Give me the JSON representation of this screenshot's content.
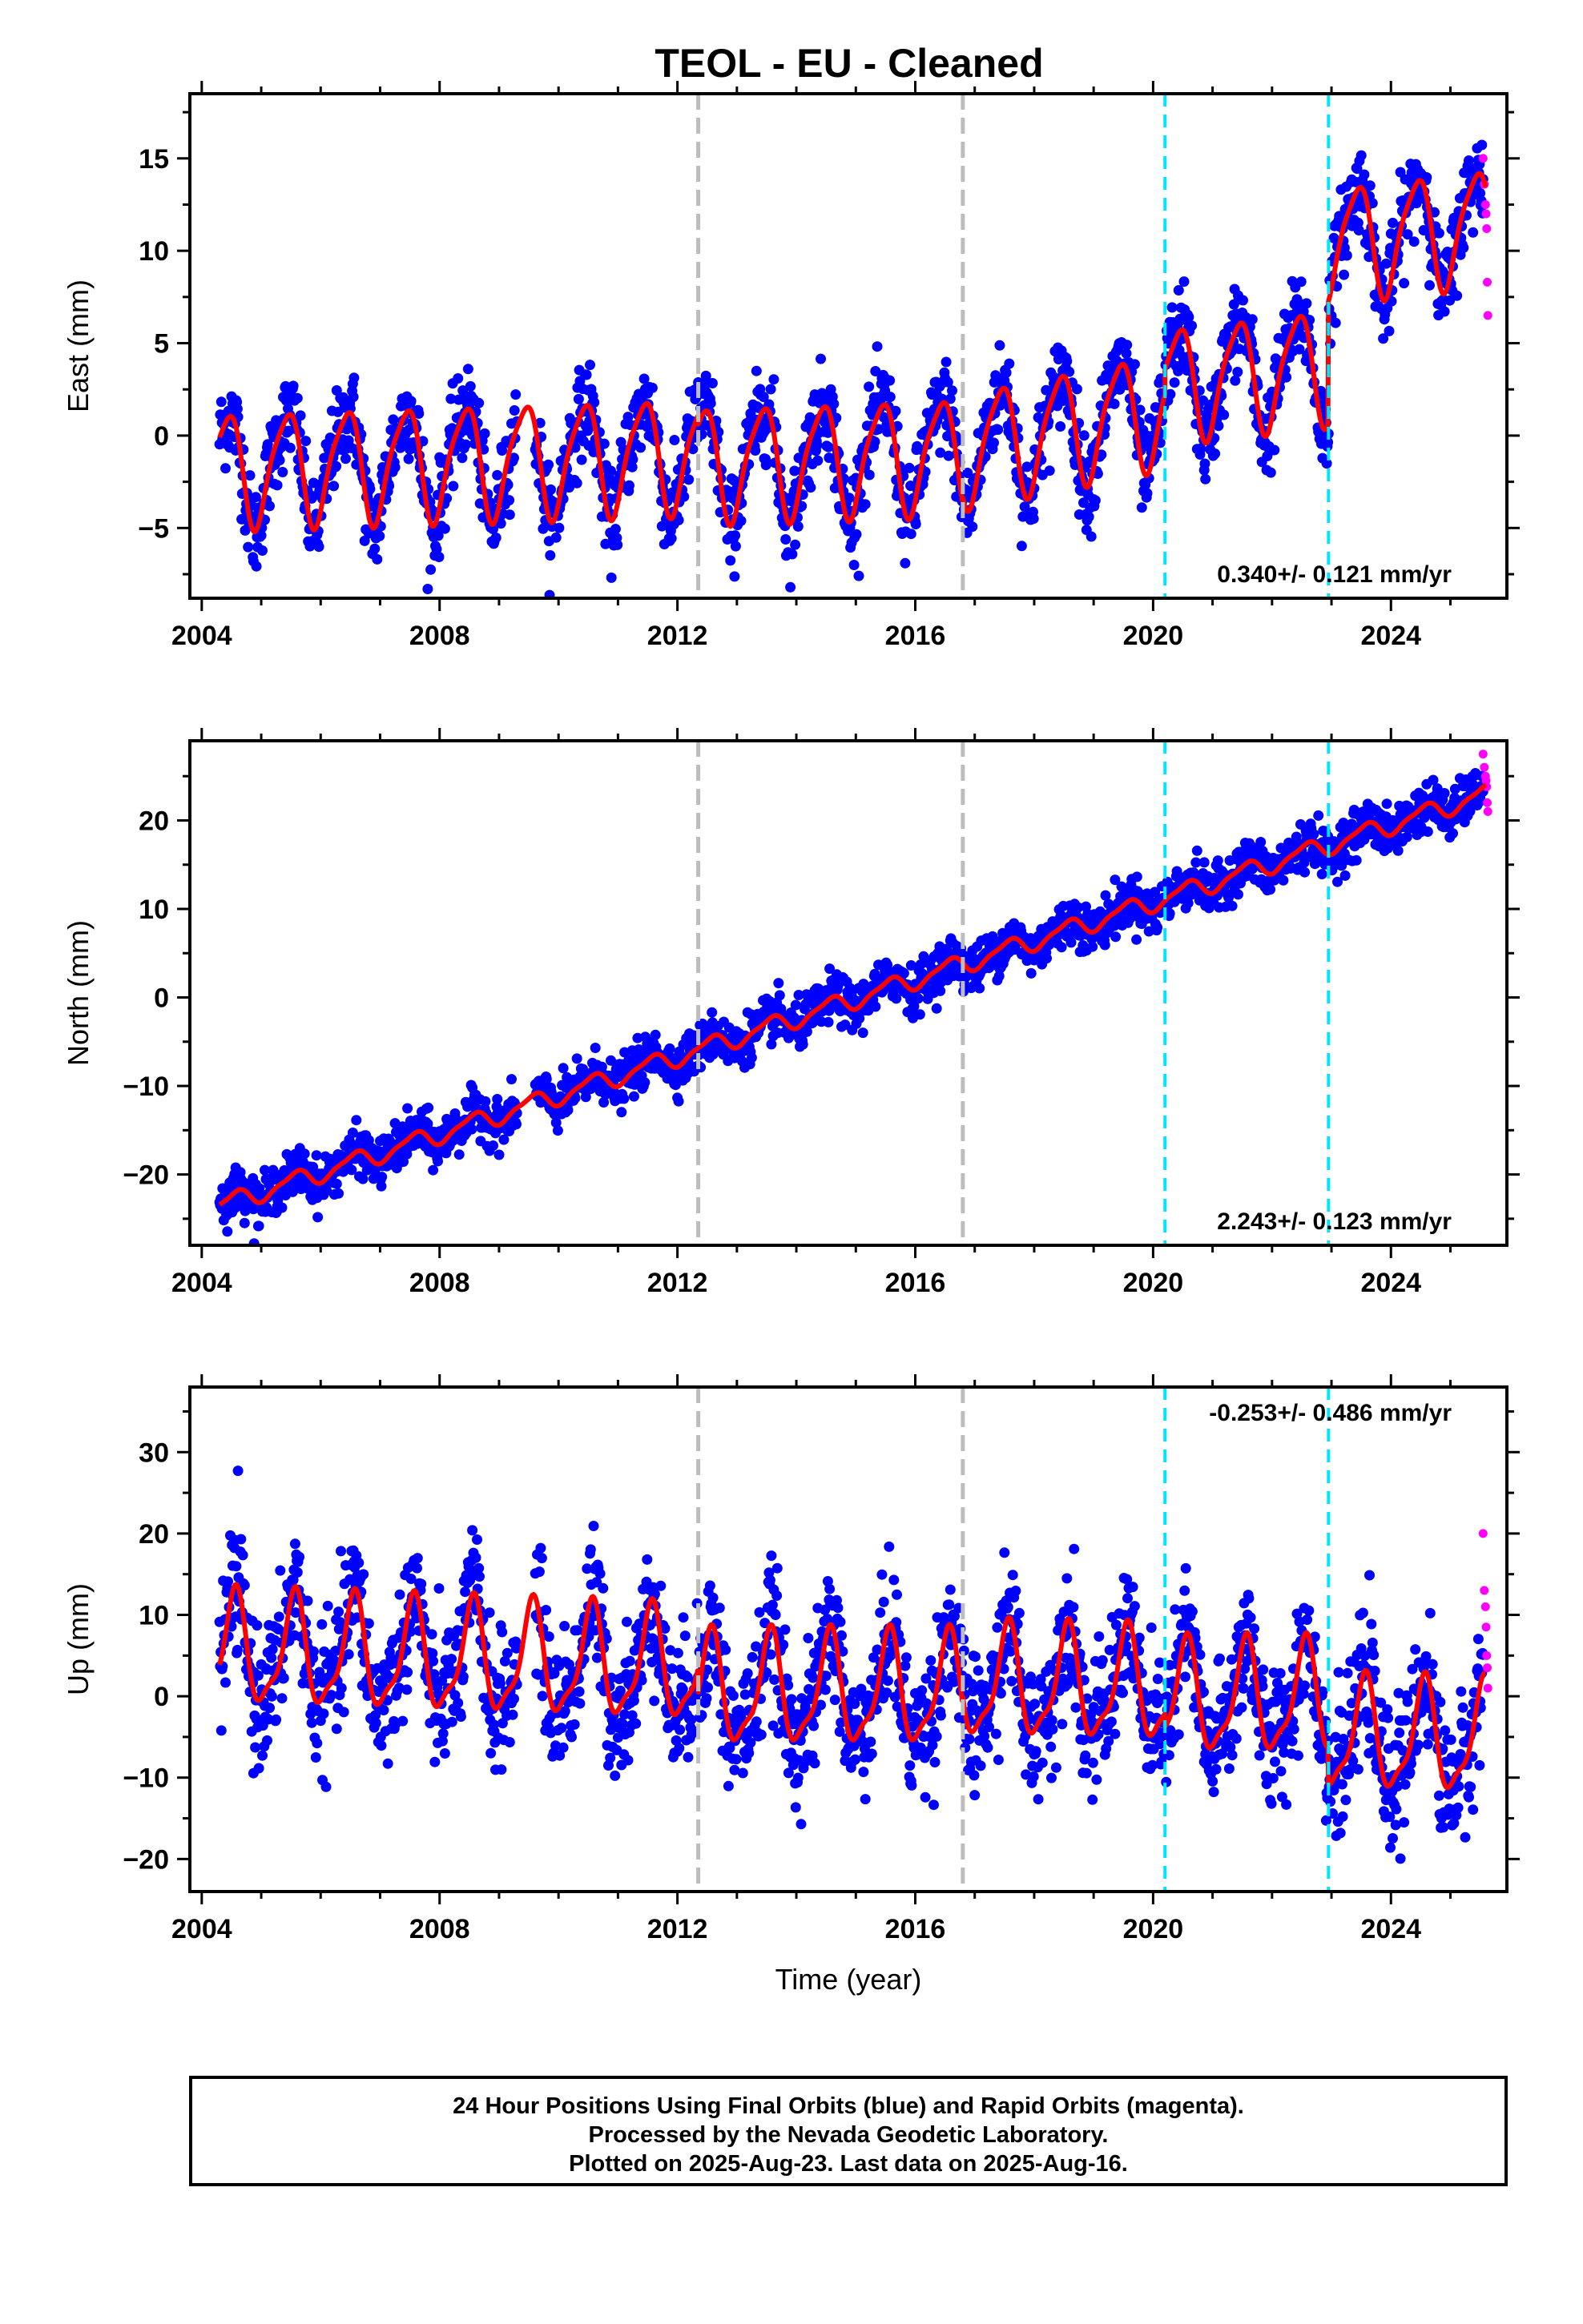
{
  "title": "TEOL  - EU - Cleaned",
  "colors": {
    "final_points": "#0000ff",
    "rapid_points": "#ff00ff",
    "model_line": "#ff0000",
    "gray_event": "#bdbdbd",
    "cyan_event": "#00e5ff"
  },
  "footer": {
    "lines": [
      "24 Hour Positions Using Final Orbits (blue) and Rapid Orbits (magenta).",
      "Processed by the Nevada Geodetic Laboratory.",
      "Plotted on 2025-Aug-23. Last data on 2025-Aug-16."
    ]
  },
  "chart_data": [
    {
      "type": "scatter",
      "panel": "east",
      "ylabel": "East (mm)",
      "xlabel": "",
      "xlim": [
        2003.8,
        2025.95
      ],
      "ylim": [
        -8.8,
        18.5
      ],
      "xticks": [
        2004,
        2008,
        2012,
        2016,
        2020,
        2024
      ],
      "yticks": [
        -5,
        0,
        5,
        10,
        15
      ],
      "rate_label": "0.340+/- 0.121 mm/yr",
      "rate_label_position": "bottom-right",
      "event_lines": [
        {
          "x": 2012.35,
          "color": "gray"
        },
        {
          "x": 2016.8,
          "color": "gray"
        },
        {
          "x": 2020.2,
          "color": "cyan"
        },
        {
          "x": 2022.95,
          "color": "cyan"
        }
      ],
      "model": {
        "trend_segments": [
          {
            "x": [
              2004.3,
              2012.35
            ],
            "y": [
              -1.8,
              -1.0
            ]
          },
          {
            "x": [
              2012.35,
              2016.8
            ],
            "y": [
              -1.5,
              -1.0
            ]
          },
          {
            "x": [
              2016.8,
              2020.2
            ],
            "y": [
              -0.7,
              1.5
            ]
          },
          {
            "x": [
              2020.2,
              2022.95
            ],
            "y": [
              2.8,
              3.8
            ]
          },
          {
            "x": [
              2022.95,
              2025.6
            ],
            "y": [
              10.4,
              11.4
            ]
          }
        ],
        "annual_amplitude": 3.0,
        "annual_peak_phase": 0.42,
        "semiannual_amplitude": 0.6,
        "semiannual_phase": 0.1
      },
      "scatter_noise": 1.2,
      "rapid_points": {
        "x": [
          2025.55,
          2025.57,
          2025.59,
          2025.6,
          2025.61,
          2025.62,
          2025.63
        ],
        "y": [
          15.0,
          13.6,
          12.5,
          12.0,
          11.2,
          8.3,
          6.5
        ]
      }
    },
    {
      "type": "scatter",
      "panel": "north",
      "ylabel": "North (mm)",
      "xlabel": "",
      "xlim": [
        2003.8,
        2025.95
      ],
      "ylim": [
        -28,
        29
      ],
      "xticks": [
        2004,
        2008,
        2012,
        2016,
        2020,
        2024
      ],
      "yticks": [
        -20,
        -10,
        0,
        10,
        20
      ],
      "rate_label": "2.243+/- 0.123 mm/yr",
      "rate_label_position": "bottom-right",
      "event_lines": [
        {
          "x": 2012.35,
          "color": "gray"
        },
        {
          "x": 2016.8,
          "color": "gray"
        },
        {
          "x": 2020.2,
          "color": "cyan"
        },
        {
          "x": 2022.95,
          "color": "cyan"
        }
      ],
      "model": {
        "trend_segments": [
          {
            "x": [
              2004.3,
              2025.6
            ],
            "y": [
              -23.5,
              23.0
            ]
          }
        ],
        "annual_amplitude": 1.0,
        "annual_peak_phase": 0.55,
        "semiannual_amplitude": 0.3,
        "semiannual_phase": 0.2
      },
      "scatter_noise": 1.3,
      "rapid_points": {
        "x": [
          2025.55,
          2025.57,
          2025.59,
          2025.6,
          2025.61,
          2025.62,
          2025.63
        ],
        "y": [
          27.5,
          26.0,
          25.0,
          24.5,
          23.8,
          22.0,
          21.0
        ]
      }
    },
    {
      "type": "scatter",
      "panel": "up",
      "ylabel": "Up (mm)",
      "xlabel": "Time (year)",
      "xlim": [
        2003.8,
        2025.95
      ],
      "ylim": [
        -24,
        38
      ],
      "xticks": [
        2004,
        2008,
        2012,
        2016,
        2020,
        2024
      ],
      "yticks": [
        -20,
        -10,
        0,
        10,
        20,
        30
      ],
      "rate_label": "-0.253+/- 0.486 mm/yr",
      "rate_label_position": "top-right",
      "event_lines": [
        {
          "x": 2012.35,
          "color": "gray"
        },
        {
          "x": 2016.8,
          "color": "gray"
        },
        {
          "x": 2020.2,
          "color": "cyan"
        },
        {
          "x": 2022.95,
          "color": "cyan"
        }
      ],
      "model": {
        "trend_segments": [
          {
            "x": [
              2004.3,
              2012.35
            ],
            "y": [
              5.5,
              3.5
            ]
          },
          {
            "x": [
              2012.35,
              2016.8
            ],
            "y": [
              0.5,
              0.5
            ]
          },
          {
            "x": [
              2016.8,
              2020.2
            ],
            "y": [
              1.5,
              1.0
            ]
          },
          {
            "x": [
              2020.2,
              2022.95
            ],
            "y": [
              -0.5,
              -0.5
            ]
          },
          {
            "x": [
              2022.95,
              2025.6
            ],
            "y": [
              -5.0,
              -5.5
            ]
          }
        ],
        "annual_amplitude": 6.5,
        "annual_peak_phase": 0.55,
        "semiannual_amplitude": 2.0,
        "semiannual_phase": 0.6
      },
      "scatter_noise": 4.0,
      "rapid_points": {
        "x": [
          2025.55,
          2025.57,
          2025.59,
          2025.6,
          2025.61,
          2025.62,
          2025.63
        ],
        "y": [
          20.0,
          13.0,
          11.0,
          8.5,
          5.0,
          3.5,
          1.0
        ]
      }
    }
  ]
}
